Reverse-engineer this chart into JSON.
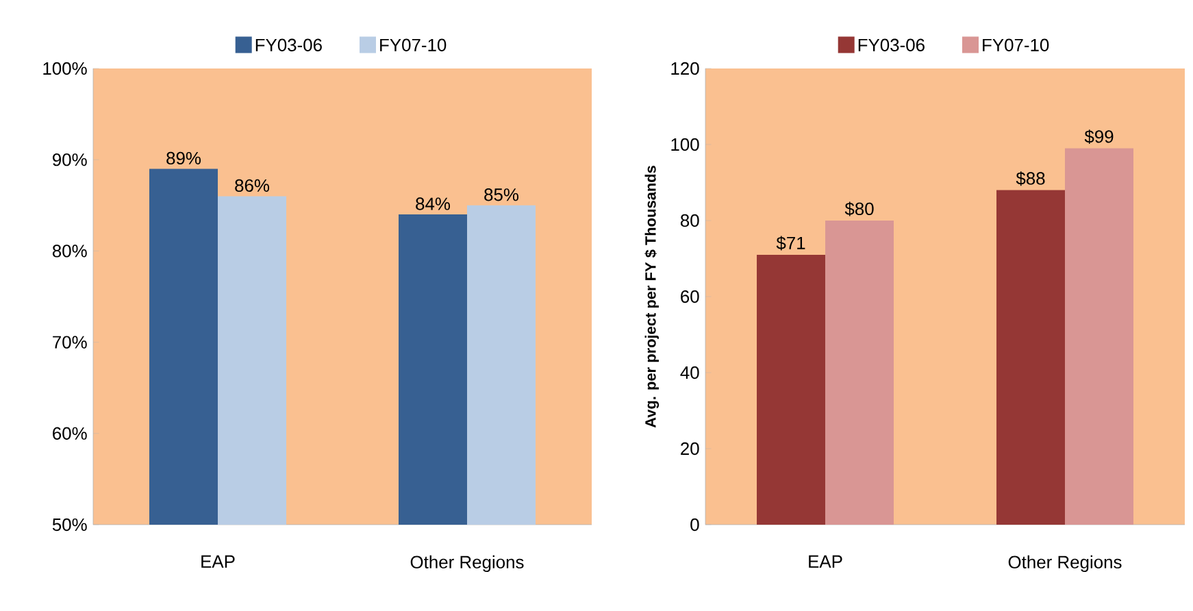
{
  "chart_data": [
    {
      "type": "bar",
      "categories": [
        "EAP",
        "Other Regions"
      ],
      "series": [
        {
          "name": "FY03-06",
          "color": "#376092",
          "values": [
            89,
            84
          ],
          "value_labels": [
            "89%",
            "84%"
          ]
        },
        {
          "name": "FY07-10",
          "color": "#b9cde5",
          "values": [
            86,
            85
          ],
          "value_labels": [
            "86%",
            "85%"
          ]
        }
      ],
      "ylim": [
        50,
        100
      ],
      "yticks": [
        {
          "value": 50,
          "label": "50%"
        },
        {
          "value": 60,
          "label": "60%"
        },
        {
          "value": 70,
          "label": "70%"
        },
        {
          "value": 80,
          "label": "80%"
        },
        {
          "value": 90,
          "label": "90%"
        },
        {
          "value": 100,
          "label": "100%"
        }
      ],
      "legend": "top"
    },
    {
      "type": "bar",
      "categories": [
        "EAP",
        "Other Regions"
      ],
      "ylabel": "Avg. per project per FY  $ Thousands",
      "series": [
        {
          "name": "FY03-06",
          "color": "#953735",
          "values": [
            71,
            88
          ],
          "value_labels": [
            "$71",
            "$88"
          ]
        },
        {
          "name": "FY07-10",
          "color": "#d99694",
          "values": [
            80,
            99
          ],
          "value_labels": [
            "$80",
            "$99"
          ]
        }
      ],
      "ylim": [
        0,
        120
      ],
      "yticks": [
        0,
        20,
        40,
        60,
        80,
        100,
        120
      ],
      "legend": "top"
    }
  ]
}
